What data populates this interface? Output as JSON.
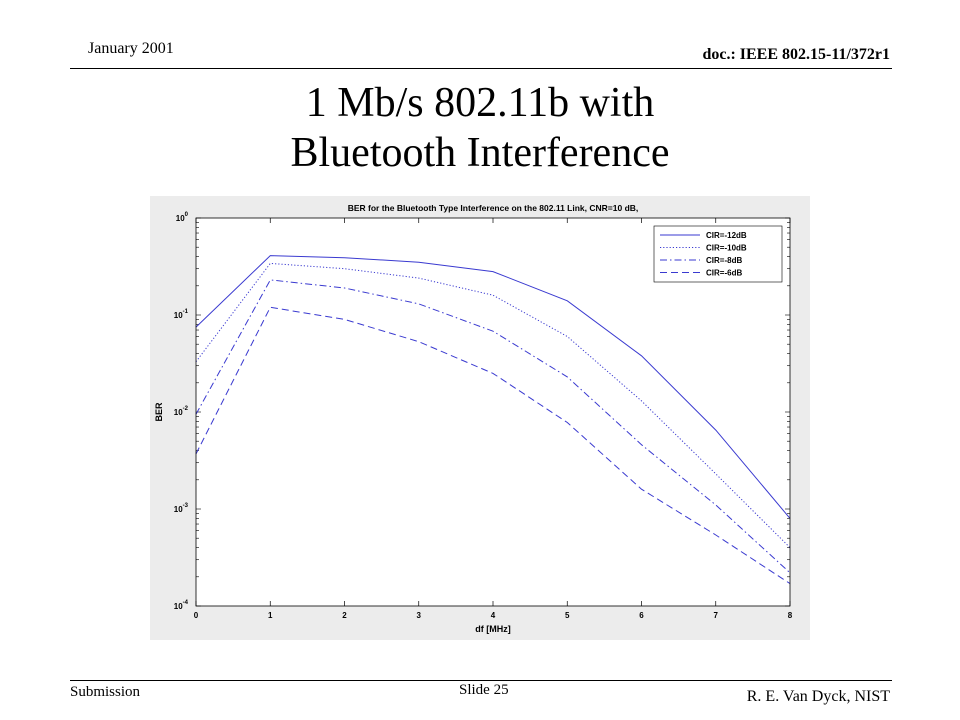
{
  "slide": {
    "date": "January 2001",
    "doc_id": "doc.: IEEE 802.15-11/372r1",
    "title_line1": "1 Mb/s 802.11b with",
    "title_line2": "Bluetooth  Interference",
    "footer_left": "Submission",
    "footer_center": "Slide 25",
    "footer_right": "R. E. Van Dyck, NIST"
  },
  "colors": {
    "series": "#3a3ad0",
    "figure_bg": "#ececec",
    "axes_bg": "#ffffff"
  },
  "chart_data": {
    "type": "line",
    "title": "BER for the Bluetooth Type Interference on the 802.11 Link, CNR=10 dB,",
    "xlabel": "df [MHz]",
    "ylabel": "BER",
    "x": [
      0,
      1,
      2,
      3,
      4,
      5,
      6,
      7,
      8
    ],
    "xlim": [
      0,
      8
    ],
    "ylim": [
      0.0001,
      1
    ],
    "yscale": "log",
    "xticks": [
      "0",
      "1",
      "2",
      "3",
      "4",
      "5",
      "6",
      "7",
      "8"
    ],
    "yticks": [
      {
        "base": "10",
        "exp": "0",
        "value": 1
      },
      {
        "base": "10",
        "exp": "-1",
        "value": 0.1
      },
      {
        "base": "10",
        "exp": "-2",
        "value": 0.01
      },
      {
        "base": "10",
        "exp": "-3",
        "value": 0.001
      },
      {
        "base": "10",
        "exp": "-4",
        "value": 0.0001
      }
    ],
    "grid": false,
    "legend_position": "top-right",
    "series": [
      {
        "name": "CIR=-12dB",
        "style": "solid",
        "values": [
          0.075,
          0.41,
          0.39,
          0.35,
          0.28,
          0.14,
          0.038,
          0.0065,
          0.0008
        ]
      },
      {
        "name": "CIR=-10dB",
        "style": "dotted",
        "values": [
          0.033,
          0.34,
          0.3,
          0.24,
          0.16,
          0.06,
          0.013,
          0.0023,
          0.0004
        ]
      },
      {
        "name": "CIR=-8dB",
        "style": "dashdot",
        "values": [
          0.0095,
          0.23,
          0.19,
          0.13,
          0.068,
          0.023,
          0.0046,
          0.0011,
          0.00022
        ]
      },
      {
        "name": "CIR=-6dB",
        "style": "dashed",
        "values": [
          0.0037,
          0.12,
          0.09,
          0.053,
          0.025,
          0.0078,
          0.0016,
          0.00054,
          0.00017
        ]
      }
    ]
  }
}
